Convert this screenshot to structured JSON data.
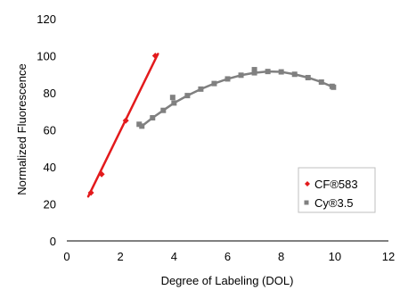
{
  "chart_data": {
    "type": "scatter",
    "xlabel": "Degree of Labeling (DOL)",
    "ylabel": "Normalized Fluorescence",
    "xlim": [
      0,
      12
    ],
    "ylim": [
      0,
      120
    ],
    "xticks": [
      0,
      2,
      4,
      6,
      8,
      10,
      12
    ],
    "yticks": [
      0,
      20,
      40,
      60,
      80,
      100,
      120
    ],
    "grid": false,
    "legend_position": "bottom-right",
    "series": [
      {
        "name": "CF®583",
        "color": "#e31a1c",
        "marker": "diamond",
        "points": [
          [
            0.9,
            26
          ],
          [
            1.3,
            36
          ],
          [
            2.2,
            65
          ],
          [
            3.3,
            100
          ]
        ],
        "fit_line": [
          [
            0.8,
            24
          ],
          [
            3.4,
            101
          ]
        ]
      },
      {
        "name": "Cy®3.5",
        "color": "#808080",
        "marker": "square",
        "points": [
          [
            2.7,
            63
          ],
          [
            3.95,
            77.5
          ],
          [
            7.0,
            92.5
          ],
          [
            9.9,
            83.5
          ]
        ],
        "fit_curve": [
          [
            2.8,
            62
          ],
          [
            3.2,
            66.5
          ],
          [
            3.6,
            70.5
          ],
          [
            4.0,
            74.5
          ],
          [
            4.5,
            78.5
          ],
          [
            5.0,
            82
          ],
          [
            5.5,
            85
          ],
          [
            6.0,
            87.5
          ],
          [
            6.5,
            89.5
          ],
          [
            7.0,
            90.8
          ],
          [
            7.5,
            91.5
          ],
          [
            8.0,
            91.3
          ],
          [
            8.5,
            90
          ],
          [
            9.0,
            88.2
          ],
          [
            9.5,
            85.8
          ],
          [
            9.95,
            83
          ]
        ]
      }
    ]
  }
}
